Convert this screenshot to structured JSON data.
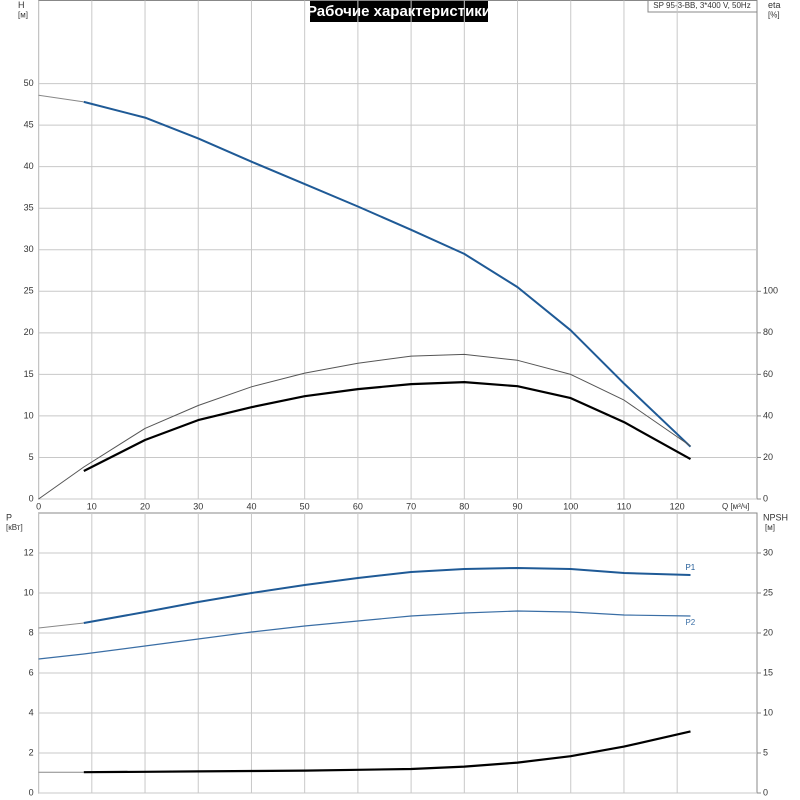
{
  "chart_data": [
    {
      "type": "line",
      "title": "Рабочие характеристики",
      "subtitle": "SP 95-3-BB, 3*400 V, 50Hz",
      "ylabel": "H",
      "yunit": "[м]",
      "y2label": "eta",
      "y2unit": "[%]",
      "xlabel": "Q [м³/ч]",
      "x": [
        0,
        8.5,
        20,
        30,
        40,
        50,
        60,
        70,
        80,
        90,
        100,
        110,
        122.5
      ],
      "xlim": [
        0,
        135
      ],
      "xticks": [
        0,
        10,
        20,
        30,
        40,
        50,
        60,
        70,
        80,
        90,
        100,
        110,
        120
      ],
      "ylim": [
        0,
        60
      ],
      "yticks": [
        0,
        5,
        10,
        15,
        20,
        25,
        30,
        35,
        40,
        45,
        50
      ],
      "y2lim": [
        0,
        240
      ],
      "y2ticks": [
        0,
        20,
        40,
        60,
        80,
        100
      ],
      "grid": true,
      "series": [
        {
          "color": "#888888",
          "line_width": 1,
          "values": [
            48.6,
            47.8,
            null,
            null,
            null,
            null,
            null,
            null,
            null,
            null,
            null,
            null,
            null
          ]
        },
        {
          "color": "#1f5a96",
          "line_width": 2,
          "values": [
            null,
            47.8,
            45.9,
            43.4,
            40.6,
            37.9,
            35.2,
            32.4,
            29.5,
            25.5,
            20.3,
            13.9,
            6.3
          ]
        },
        {
          "color": "#555555",
          "line_width": 1,
          "axis": "y2",
          "values": [
            0,
            15.4,
            34,
            45,
            54,
            60.6,
            65.4,
            68.8,
            69.6,
            66.8,
            60,
            47.6,
            25.5
          ]
        },
        {
          "color": "#000000",
          "line_width": 2.2,
          "axis": "y2",
          "values": [
            null,
            13.5,
            28.4,
            38,
            44.2,
            49.5,
            52.9,
            55.3,
            56.3,
            54.3,
            48.6,
            37,
            19.2
          ]
        }
      ]
    },
    {
      "type": "line",
      "ylabel": "P",
      "yunit": "[кВт]",
      "y2label": "NPSH",
      "y2unit": "[м]",
      "x": [
        0,
        8.5,
        20,
        30,
        40,
        50,
        60,
        70,
        80,
        90,
        100,
        110,
        122.5
      ],
      "xlim": [
        0,
        135
      ],
      "xticks": [
        0,
        10,
        20,
        30,
        40,
        50,
        60,
        70,
        80,
        90,
        100,
        110,
        120
      ],
      "ylim": [
        0,
        14
      ],
      "yticks": [
        0,
        2,
        4,
        6,
        8,
        10,
        12
      ],
      "y2lim": [
        0,
        35
      ],
      "y2ticks": [
        0,
        5,
        10,
        15,
        20,
        25,
        30
      ],
      "grid": true,
      "series": [
        {
          "color": "#888888",
          "line_width": 1,
          "values": [
            8.25,
            8.5,
            null,
            null,
            null,
            null,
            null,
            null,
            null,
            null,
            null,
            null,
            null
          ]
        },
        {
          "name": "P1",
          "color": "#1f5a96",
          "line_width": 2,
          "values": [
            null,
            8.5,
            9.05,
            9.55,
            10,
            10.4,
            10.75,
            11.05,
            11.2,
            11.25,
            11.2,
            11.0,
            10.9
          ]
        },
        {
          "name": "P2",
          "color": "#3a6ea5",
          "line_width": 1.2,
          "values": [
            6.7,
            6.95,
            7.35,
            7.7,
            8.05,
            8.35,
            8.6,
            8.85,
            9.0,
            9.1,
            9.05,
            8.9,
            8.85
          ]
        },
        {
          "color": "#888888",
          "line_width": 1,
          "axis": "y2",
          "values": [
            2.6,
            2.6,
            null,
            null,
            null,
            null,
            null,
            null,
            null,
            null,
            null,
            null,
            null
          ]
        },
        {
          "color": "#000000",
          "line_width": 2.2,
          "axis": "y2",
          "values": [
            null,
            2.6,
            2.65,
            2.7,
            2.75,
            2.8,
            2.9,
            3.0,
            3.3,
            3.8,
            4.6,
            5.8,
            7.7
          ]
        }
      ]
    }
  ]
}
